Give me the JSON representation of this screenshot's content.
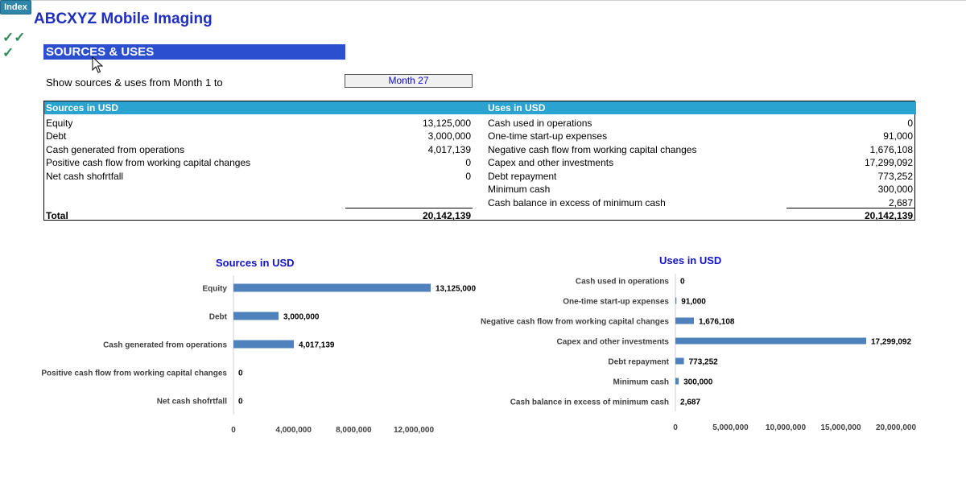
{
  "index_label": "Index",
  "app_title": "ABCXYZ Mobile Imaging",
  "checkmarks": [
    "✓✓",
    "✓"
  ],
  "banner": "SOURCES & USES",
  "period": {
    "label": "Show sources & uses from Month 1 to",
    "selected": "Month 27"
  },
  "table": {
    "sources_header": "Sources in USD",
    "uses_header": "Uses in USD",
    "sources": [
      {
        "label": "Equity",
        "value": "13,125,000"
      },
      {
        "label": "Debt",
        "value": "3,000,000"
      },
      {
        "label": "Cash generated from operations",
        "value": "4,017,139"
      },
      {
        "label": "Positive cash flow from working capital changes",
        "value": "0"
      },
      {
        "label": "Net cash shofrtfall",
        "value": "0"
      }
    ],
    "uses": [
      {
        "label": "Cash used in operations",
        "value": "0"
      },
      {
        "label": "One-time start-up expenses",
        "value": "91,000"
      },
      {
        "label": "Negative cash flow from working capital changes",
        "value": "1,676,108"
      },
      {
        "label": "Capex and other investments",
        "value": "17,299,092"
      },
      {
        "label": "Debt repayment",
        "value": "773,252"
      },
      {
        "label": "Minimum cash",
        "value": "300,000"
      },
      {
        "label": "Cash balance in excess of minimum cash",
        "value": "2,687"
      }
    ],
    "total_label": "Total",
    "sources_total": "20,142,139",
    "uses_total": "20,142,139"
  },
  "chart_data": [
    {
      "type": "bar",
      "orientation": "horizontal",
      "title": "Sources in USD",
      "categories": [
        "Equity",
        "Debt",
        "Cash generated from operations",
        "Positive cash flow from working capital changes",
        "Net cash shofrtfall"
      ],
      "values": [
        13125000,
        3000000,
        4017139,
        0,
        0
      ],
      "value_labels": [
        "13,125,000",
        "3,000,000",
        "4,017,139",
        "0",
        "0"
      ],
      "xlim": [
        0,
        13125000
      ],
      "xticks": [
        0,
        4000000,
        8000000,
        12000000
      ],
      "xtick_labels": [
        "0",
        "4,000,000",
        "8,000,000",
        "12,000,000"
      ],
      "color": "#4f81bd"
    },
    {
      "type": "bar",
      "orientation": "horizontal",
      "title": "Uses in USD",
      "categories": [
        "Cash used in operations",
        "One-time start-up expenses",
        "Negative cash flow from working capital changes",
        "Capex and other investments",
        "Debt repayment",
        "Minimum cash",
        "Cash balance in excess of minimum cash"
      ],
      "values": [
        0,
        91000,
        1676108,
        17299092,
        773252,
        300000,
        2687
      ],
      "value_labels": [
        "0",
        "91,000",
        "1,676,108",
        "17,299,092",
        "773,252",
        "300,000",
        "2,687"
      ],
      "xlim": [
        0,
        20000000
      ],
      "xticks": [
        0,
        5000000,
        10000000,
        15000000,
        20000000
      ],
      "xtick_labels": [
        "0",
        "5,000,000",
        "10,000,000",
        "15,000,000",
        "20,000,000"
      ],
      "color": "#4f81bd"
    }
  ]
}
